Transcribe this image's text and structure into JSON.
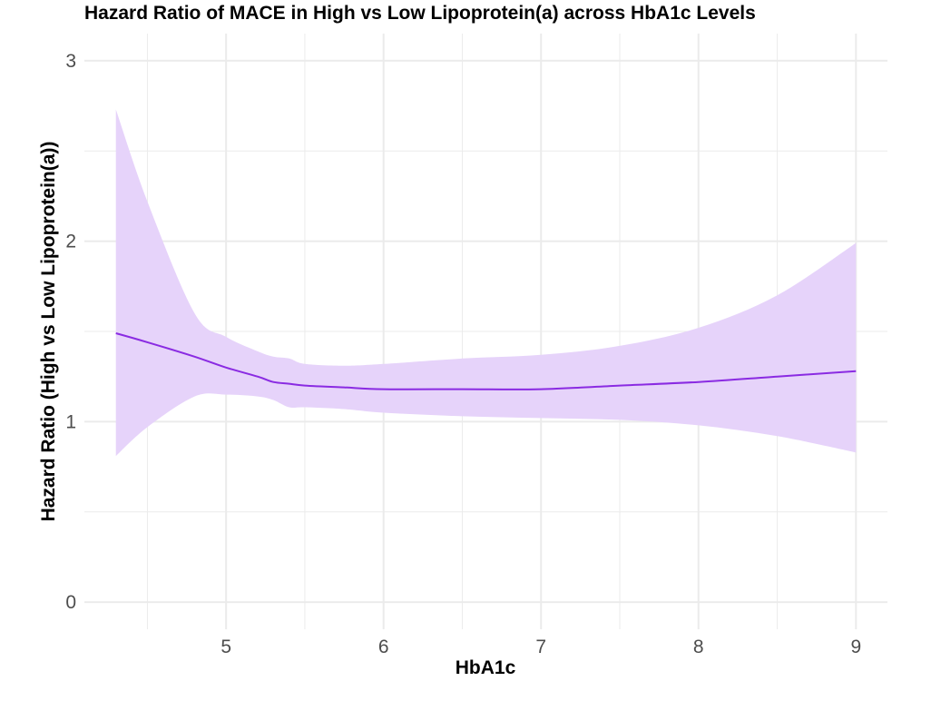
{
  "chart_data": {
    "type": "line",
    "title": "Hazard Ratio of MACE in High vs Low Lipoprotein(a) across HbA1c Levels",
    "xlabel": "HbA1c",
    "ylabel": "Hazard Ratio (High vs Low Lipoprotein(a))",
    "xlim": [
      4.1,
      9.2
    ],
    "ylim": [
      -0.15,
      3.15
    ],
    "x_ticks": [
      5,
      6,
      7,
      8,
      9
    ],
    "y_ticks": [
      0,
      1,
      2,
      3
    ],
    "grid": true,
    "colors": {
      "line": "#8a2be2",
      "band": "#e6d3fa",
      "grid": "#ebebeb"
    },
    "series": [
      {
        "name": "Hazard Ratio",
        "x": [
          4.3,
          4.5,
          4.8,
          5.0,
          5.2,
          5.3,
          5.4,
          5.5,
          5.75,
          6.0,
          6.5,
          7.0,
          7.5,
          8.0,
          8.5,
          9.0
        ],
        "y": [
          1.49,
          1.44,
          1.36,
          1.3,
          1.25,
          1.22,
          1.21,
          1.2,
          1.19,
          1.18,
          1.18,
          1.18,
          1.2,
          1.22,
          1.25,
          1.28
        ],
        "lower": [
          0.81,
          0.97,
          1.14,
          1.15,
          1.14,
          1.12,
          1.08,
          1.08,
          1.07,
          1.05,
          1.03,
          1.02,
          1.01,
          0.98,
          0.92,
          0.83
        ],
        "upper": [
          2.73,
          2.22,
          1.6,
          1.47,
          1.39,
          1.36,
          1.35,
          1.32,
          1.31,
          1.32,
          1.35,
          1.37,
          1.42,
          1.52,
          1.7,
          1.99
        ]
      }
    ]
  }
}
